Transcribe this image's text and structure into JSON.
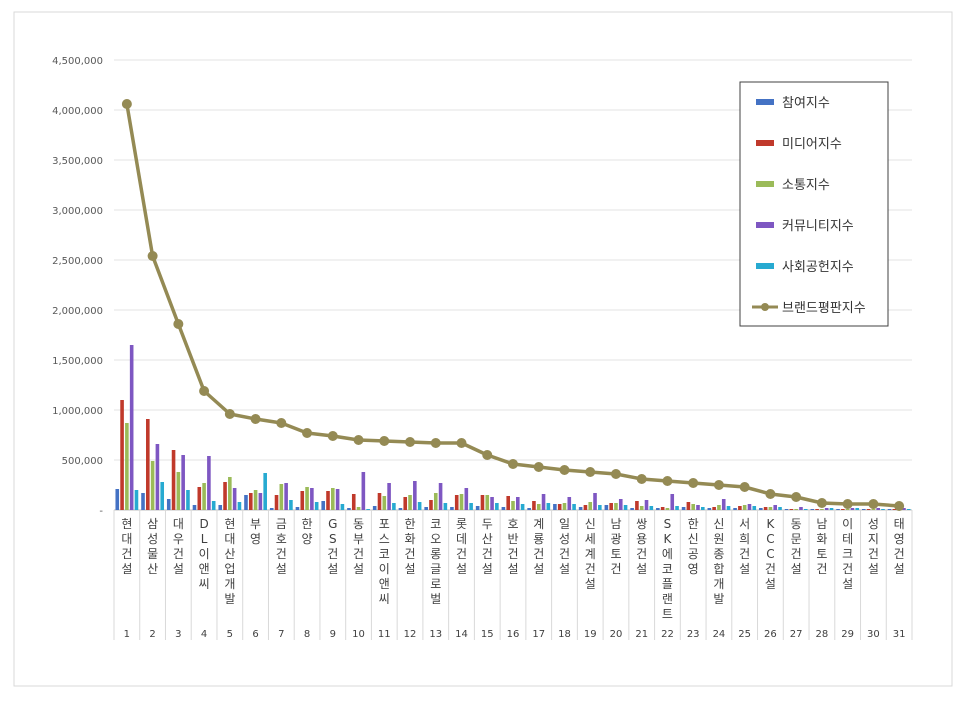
{
  "chart_data": {
    "type": "bar",
    "combo_line_series": "브랜드평판지수",
    "title": "",
    "xlabel": "",
    "ylabel": "",
    "ylim": [
      0,
      4500000
    ],
    "yticks": [
      0,
      500000,
      1000000,
      1500000,
      2000000,
      2500000,
      3000000,
      3500000,
      4000000,
      4500000
    ],
    "ytick_labels": [
      "-",
      "500,000",
      "1,000,000",
      "1,500,000",
      "2,000,000",
      "2,500,000",
      "3,000,000",
      "3,500,000",
      "4,000,000",
      "4,500,000"
    ],
    "grid": true,
    "legend_position": "top-right",
    "categories": [
      "현대건설",
      "삼성물산",
      "대우건설",
      "DL이앤씨",
      "현대산업개발",
      "부영",
      "금호건설",
      "한양",
      "GS건설",
      "동부건설",
      "포스코이앤씨",
      "한화건설",
      "코오롱글로벌",
      "롯데건설",
      "두산건설",
      "호반건설",
      "계룡건설",
      "일성건설",
      "신세계건설",
      "남광토건",
      "쌍용건설",
      "SK에코플랜트",
      "한신공영",
      "신원종합개발",
      "서희건설",
      "KCC건설",
      "동문건설",
      "남화토건",
      "이테크건설",
      "성지건설",
      "태영건설"
    ],
    "ranks": [
      "1",
      "2",
      "3",
      "4",
      "5",
      "6",
      "7",
      "8",
      "9",
      "10",
      "11",
      "12",
      "13",
      "14",
      "15",
      "16",
      "17",
      "18",
      "19",
      "20",
      "21",
      "22",
      "23",
      "24",
      "25",
      "26",
      "27",
      "28",
      "29",
      "30",
      "31"
    ],
    "series": [
      {
        "name": "참여지수",
        "kind": "bar",
        "color": "#4472C4",
        "values": [
          210000,
          170000,
          110000,
          50000,
          50000,
          150000,
          20000,
          30000,
          90000,
          20000,
          40000,
          20000,
          30000,
          30000,
          40000,
          30000,
          20000,
          60000,
          30000,
          50000,
          20000,
          20000,
          30000,
          20000,
          20000,
          20000,
          10000,
          10000,
          10000,
          10000,
          10000
        ]
      },
      {
        "name": "미디어지수",
        "kind": "bar",
        "color": "#C0392B",
        "values": [
          1100000,
          910000,
          600000,
          230000,
          280000,
          170000,
          150000,
          190000,
          190000,
          160000,
          170000,
          130000,
          100000,
          150000,
          150000,
          140000,
          90000,
          60000,
          50000,
          70000,
          90000,
          30000,
          80000,
          30000,
          40000,
          30000,
          10000,
          10000,
          10000,
          10000,
          10000
        ]
      },
      {
        "name": "소통지수",
        "kind": "bar",
        "color": "#9BBB59",
        "values": [
          870000,
          490000,
          380000,
          270000,
          330000,
          200000,
          260000,
          230000,
          220000,
          30000,
          140000,
          150000,
          170000,
          160000,
          150000,
          90000,
          60000,
          70000,
          80000,
          70000,
          40000,
          20000,
          60000,
          50000,
          50000,
          30000,
          10000,
          10000,
          10000,
          10000,
          10000
        ]
      },
      {
        "name": "커뮤니티지수",
        "kind": "bar",
        "color": "#7E57C2",
        "values": [
          1650000,
          660000,
          550000,
          540000,
          220000,
          170000,
          270000,
          220000,
          210000,
          380000,
          270000,
          290000,
          270000,
          220000,
          130000,
          130000,
          160000,
          130000,
          170000,
          110000,
          100000,
          160000,
          50000,
          110000,
          60000,
          50000,
          30000,
          20000,
          20000,
          20000,
          20000
        ]
      },
      {
        "name": "사회공헌지수",
        "kind": "bar",
        "color": "#27AAD1",
        "values": [
          200000,
          280000,
          200000,
          90000,
          80000,
          370000,
          100000,
          80000,
          60000,
          10000,
          70000,
          80000,
          70000,
          70000,
          70000,
          60000,
          70000,
          60000,
          50000,
          50000,
          40000,
          40000,
          30000,
          40000,
          40000,
          30000,
          10000,
          20000,
          20000,
          10000,
          10000
        ]
      },
      {
        "name": "브랜드평판지수",
        "kind": "line",
        "color": "#948A54",
        "values": [
          4060000,
          2540000,
          1860000,
          1190000,
          960000,
          910000,
          870000,
          770000,
          740000,
          700000,
          690000,
          680000,
          670000,
          670000,
          550000,
          460000,
          430000,
          400000,
          380000,
          360000,
          310000,
          290000,
          270000,
          250000,
          230000,
          160000,
          130000,
          70000,
          60000,
          60000,
          40000
        ]
      }
    ]
  }
}
